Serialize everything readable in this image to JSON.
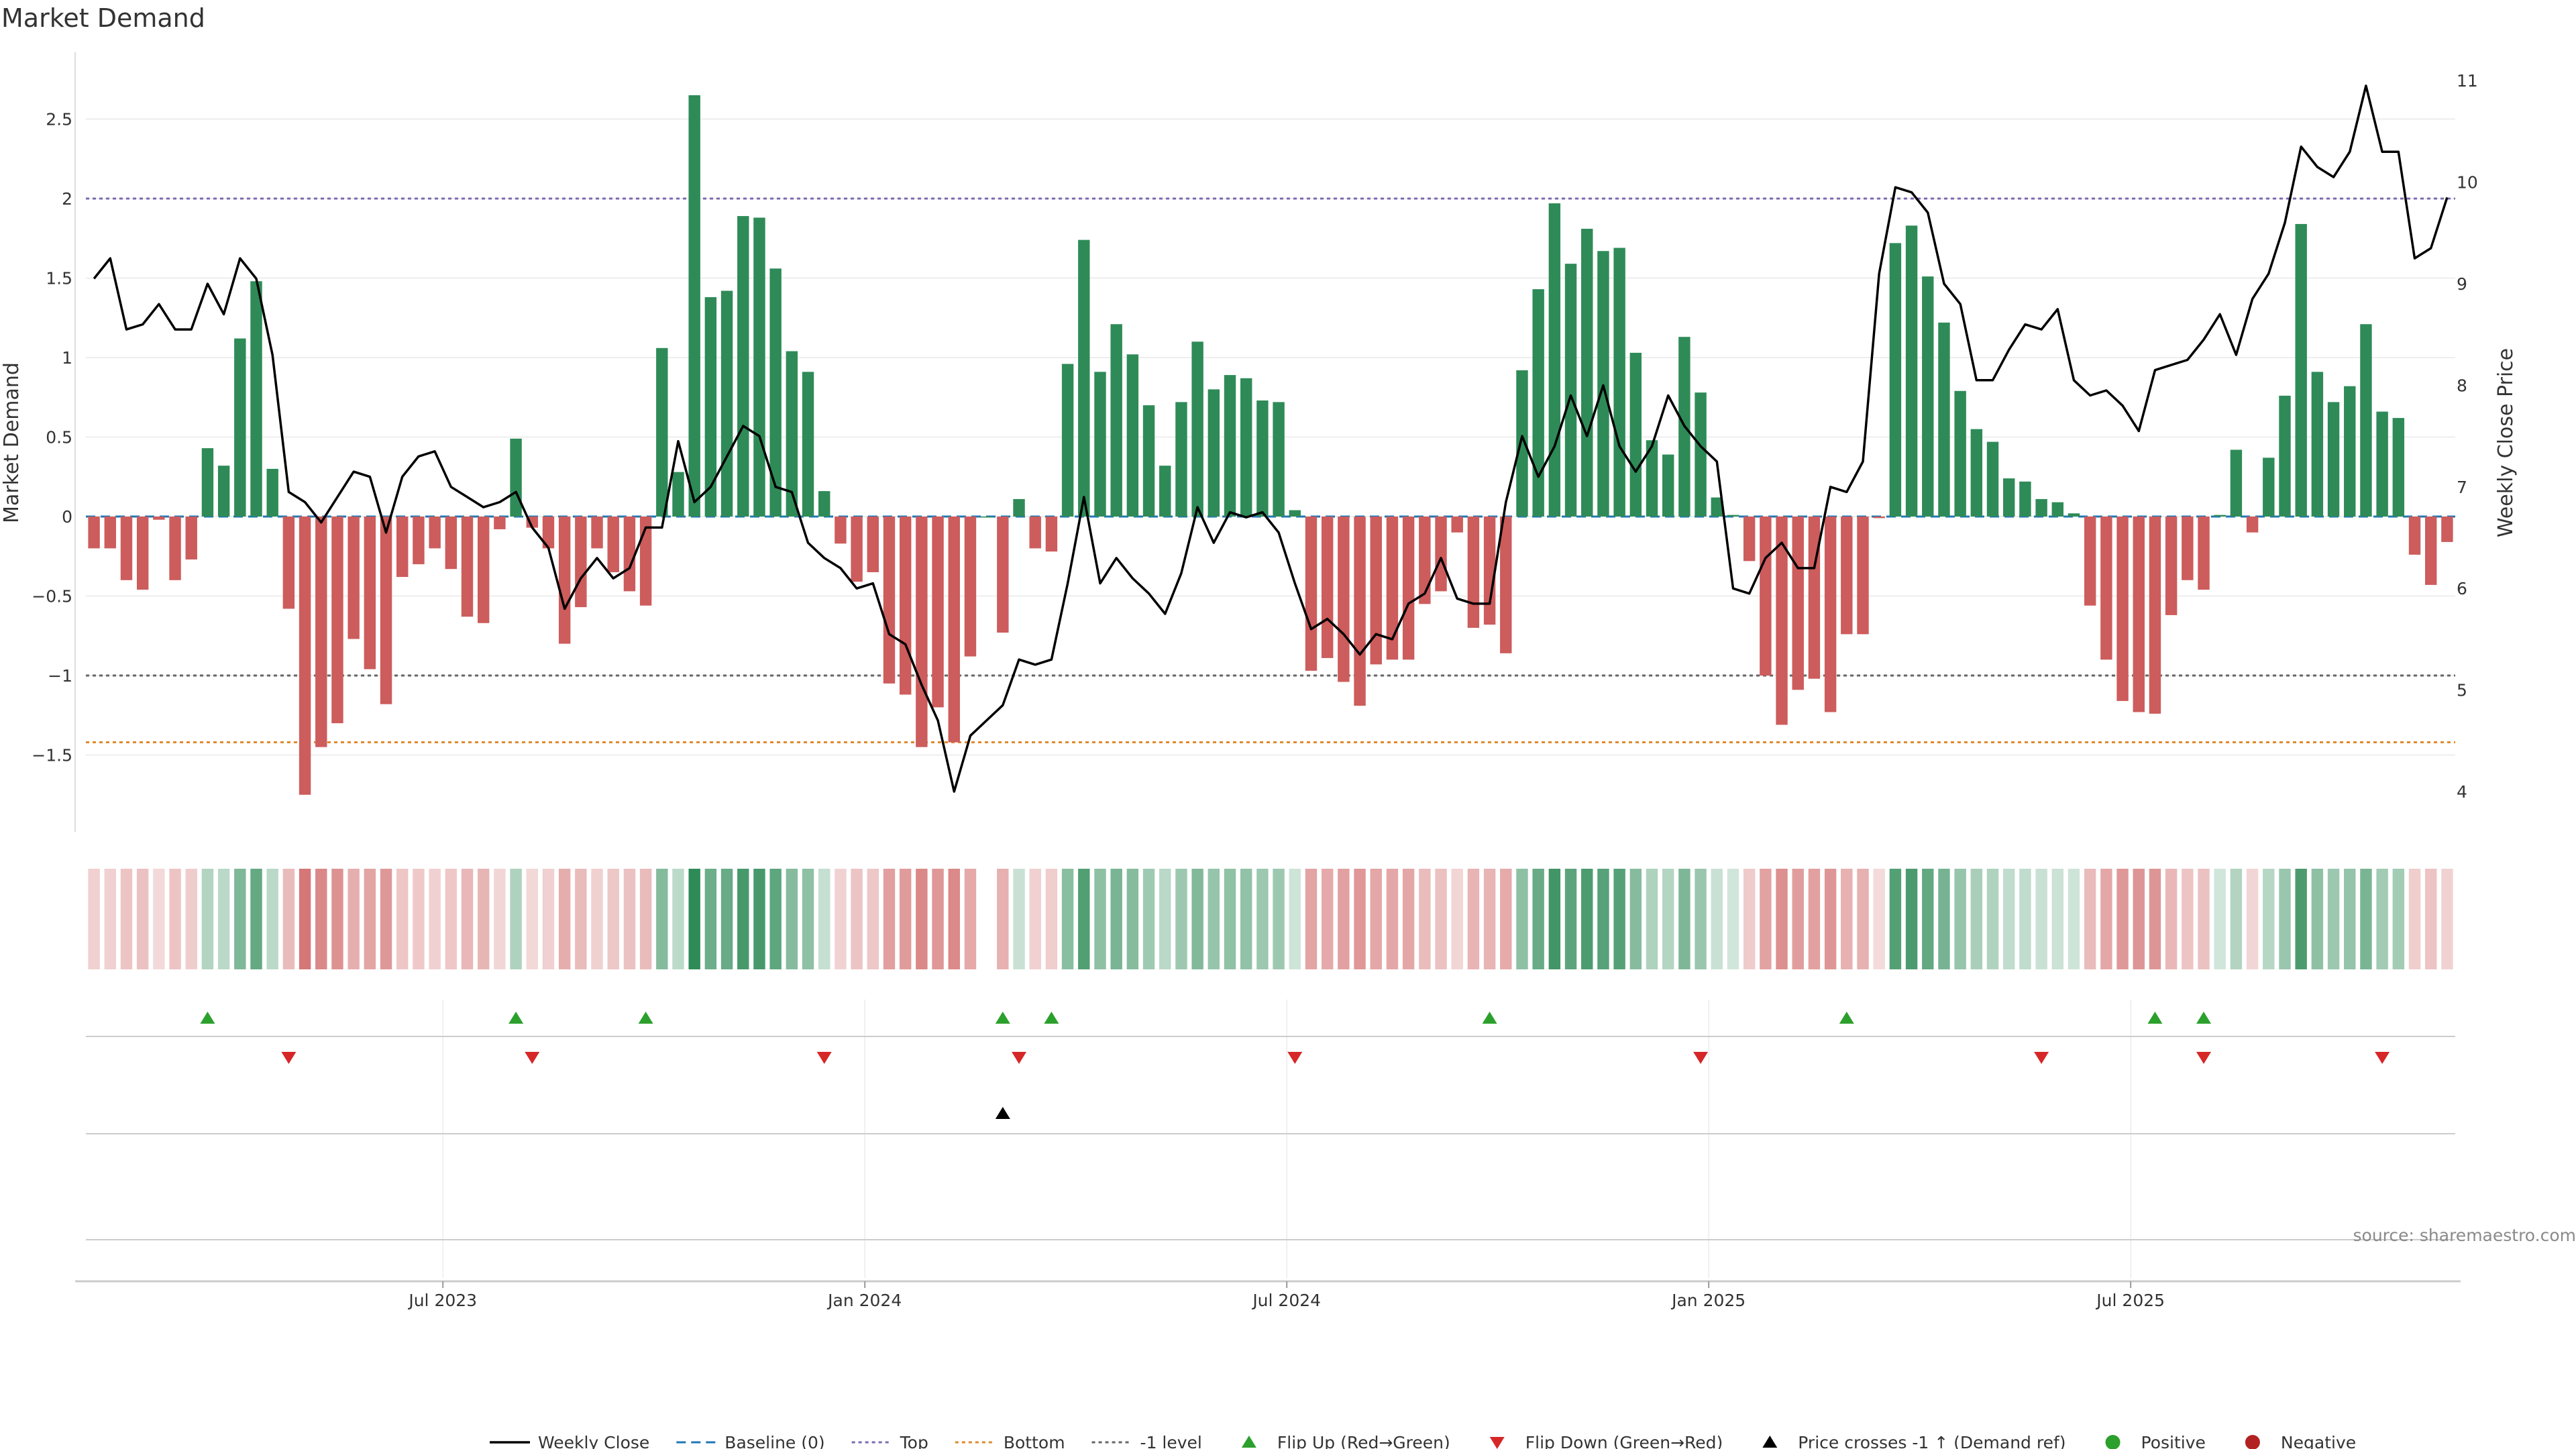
{
  "chart_data": {
    "type": "bar",
    "title": "Market Demand",
    "ylabel": "Market Demand",
    "y2label": "Weekly Close Price",
    "ylim": [
      -2.0,
      2.9
    ],
    "y2lim": [
      3.6,
      11.6
    ],
    "yticks": [
      "2.5",
      "2",
      "1.5",
      "1",
      "0.5",
      "0",
      "−0.5",
      "−1",
      "−1.5"
    ],
    "yticks_values": [
      2.5,
      2,
      1.5,
      1,
      0.5,
      0,
      -0.5,
      -1,
      -1.5
    ],
    "y2ticks": [
      "11",
      "10",
      "9",
      "8",
      "7",
      "6",
      "5",
      "4"
    ],
    "y2ticks_values": [
      11,
      10,
      9,
      8,
      7,
      6,
      5,
      4
    ],
    "xlabels": [
      "Jul 2023",
      "Jan 2024",
      "Jul 2024",
      "Jan 2025",
      "Jul 2025"
    ],
    "xlabel_weeks": [
      22,
      48,
      74,
      100,
      126
    ],
    "levels": {
      "top": 2.0,
      "bottom": -1.42,
      "minus_one": -1.0,
      "baseline": 0
    },
    "colors": {
      "positive": "#2e8b57",
      "negative": "#cd5c5c",
      "price": "#000000",
      "top_line": "#7b6bb0",
      "bottom_line": "#e08a2c",
      "minus_one_line": "#666666",
      "flip_up": "#2ca02c",
      "flip_down": "#d62728"
    },
    "demand": [
      -0.2,
      -0.2,
      -0.4,
      -0.46,
      -0.02,
      -0.4,
      -0.27,
      0.43,
      0.32,
      1.12,
      1.48,
      0.3,
      -0.58,
      -1.75,
      -1.45,
      -1.3,
      -0.77,
      -0.96,
      -1.18,
      -0.38,
      -0.3,
      -0.2,
      -0.33,
      -0.63,
      -0.67,
      -0.08,
      0.49,
      -0.07,
      -0.2,
      -0.8,
      -0.57,
      -0.2,
      -0.35,
      -0.47,
      -0.56,
      1.06,
      0.28,
      2.65,
      1.38,
      1.42,
      1.89,
      1.88,
      1.56,
      1.04,
      0.91,
      0.16,
      -0.17,
      -0.41,
      -0.35,
      -1.05,
      -1.12,
      -1.45,
      -1.2,
      -1.42,
      -0.88,
      0,
      -0.73,
      0.11,
      -0.2,
      -0.22,
      0.96,
      1.74,
      0.91,
      1.21,
      1.02,
      0.7,
      0.32,
      0.72,
      1.1,
      0.8,
      0.89,
      0.87,
      0.73,
      0.72,
      0.04,
      -0.97,
      -0.89,
      -1.04,
      -1.19,
      -0.93,
      -0.9,
      -0.9,
      -0.55,
      -0.47,
      -0.1,
      -0.7,
      -0.68,
      -0.86,
      0.92,
      1.43,
      1.97,
      1.59,
      1.81,
      1.67,
      1.69,
      1.03,
      0.48,
      0.39,
      1.13,
      0.78,
      0.12,
      0.01,
      -0.28,
      -1.0,
      -1.31,
      -1.09,
      -1.02,
      -1.23,
      -0.74,
      -0.74,
      -0.01,
      1.72,
      1.83,
      1.51,
      1.22,
      0.79,
      0.55,
      0.47,
      0.24,
      0.22,
      0.11,
      0.09,
      0.02,
      -0.56,
      -0.9,
      -1.16,
      -1.23,
      -1.24,
      -0.62,
      -0.4,
      -0.46,
      0.01,
      0.42,
      -0.1,
      0.37,
      0.76,
      1.84,
      0.91,
      0.72,
      0.82,
      1.21,
      0.66,
      0.62,
      -0.24,
      -0.43,
      -0.16
    ],
    "price": [
      9.05,
      9.25,
      8.55,
      8.6,
      8.8,
      8.55,
      8.55,
      9.0,
      8.7,
      9.25,
      9.05,
      8.3,
      6.95,
      6.85,
      6.65,
      6.9,
      7.15,
      7.1,
      6.55,
      7.1,
      7.3,
      7.35,
      7.0,
      6.9,
      6.8,
      6.85,
      6.95,
      6.6,
      6.4,
      5.8,
      6.1,
      6.3,
      6.1,
      6.2,
      6.6,
      6.6,
      7.45,
      6.85,
      7.0,
      7.3,
      7.6,
      7.5,
      7.0,
      6.95,
      6.45,
      6.3,
      6.2,
      6.0,
      6.05,
      5.55,
      5.45,
      5.05,
      4.7,
      4.0,
      4.55,
      4.7,
      4.85,
      5.3,
      5.25,
      5.3,
      6.05,
      6.9,
      6.05,
      6.3,
      6.1,
      5.95,
      5.75,
      6.15,
      6.8,
      6.45,
      6.75,
      6.7,
      6.75,
      6.55,
      6.05,
      5.6,
      5.7,
      5.55,
      5.35,
      5.55,
      5.5,
      5.85,
      5.95,
      6.3,
      5.9,
      5.85,
      5.85,
      6.85,
      7.5,
      7.1,
      7.4,
      7.9,
      7.5,
      8.0,
      7.4,
      7.15,
      7.4,
      7.9,
      7.6,
      7.4,
      7.25,
      6.0,
      5.95,
      6.3,
      6.45,
      6.2,
      6.2,
      7.0,
      6.95,
      7.25,
      9.1,
      9.95,
      9.9,
      9.7,
      9.0,
      8.8,
      8.05,
      8.05,
      8.35,
      8.6,
      8.55,
      8.75,
      8.05,
      7.9,
      7.95,
      7.8,
      7.55,
      8.15,
      8.2,
      8.25,
      8.45,
      8.7,
      8.3,
      8.85,
      9.1,
      9.6,
      10.35,
      10.15,
      10.05,
      10.3,
      10.95,
      10.3,
      10.3,
      9.25,
      9.35,
      9.85
    ],
    "heat_gaps": [
      55
    ],
    "flip_up_weeks": [
      7,
      26,
      34,
      56,
      59,
      86,
      108,
      127,
      130
    ],
    "flip_down_weeks": [
      12,
      27,
      45,
      57,
      74,
      99,
      120,
      130,
      141
    ],
    "price_cross_weeks": [
      56
    ],
    "legend": [
      "Weekly Close",
      "Baseline (0)",
      "Top",
      "Bottom",
      "-1 level",
      "Flip Up (Red→Green)",
      "Flip Down (Green→Red)",
      "Price crosses -1 ↑ (Demand ref)",
      "Positive",
      "Negative"
    ],
    "source": "source: sharemaestro.com"
  }
}
